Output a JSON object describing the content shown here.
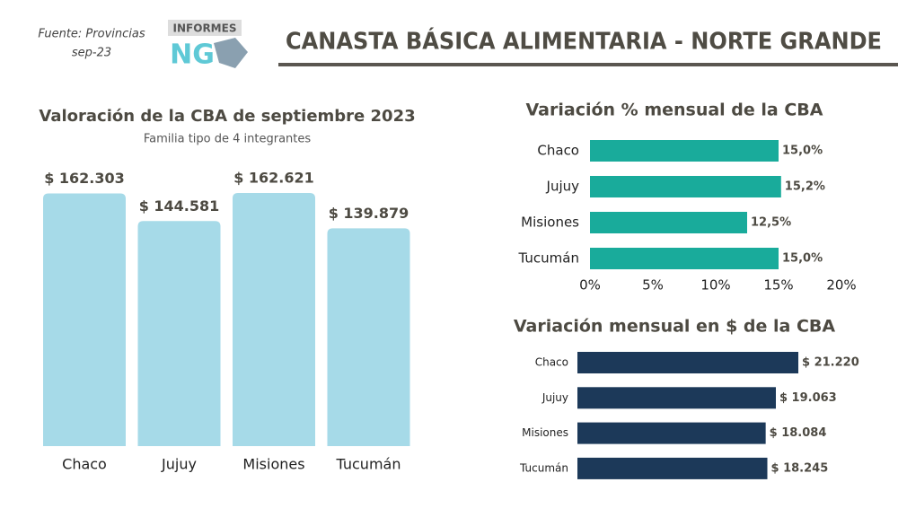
{
  "header": {
    "source": "Fuente: Provincias",
    "date": "sep-23",
    "logo_top": "INFORMES",
    "logo_main": "NG",
    "title": "CANASTA BÁSICA ALIMENTARIA - NORTE GRANDE"
  },
  "chart_data": [
    {
      "type": "bar",
      "title": "Valoración de la CBA de septiembre 2023",
      "subtitle": "Familia tipo de 4 integrantes",
      "categories": [
        "Chaco",
        "Jujuy",
        "Misiones",
        "Tucumán"
      ],
      "values": [
        162303,
        144581,
        162621,
        139879
      ],
      "value_labels": [
        "$ 162.303",
        "$ 144.581",
        "$ 162.621",
        "$ 139.879"
      ],
      "color": "#a6dae8"
    },
    {
      "type": "barh",
      "title": "Variación % mensual de la CBA",
      "categories": [
        "Chaco",
        "Jujuy",
        "Misiones",
        "Tucumán"
      ],
      "values": [
        15.0,
        15.2,
        12.5,
        15.0
      ],
      "value_labels": [
        "15,0%",
        "15,2%",
        "12,5%",
        "15,0%"
      ],
      "xlim": [
        0,
        20
      ],
      "xticks": [
        {
          "value": 0,
          "label": "0%"
        },
        {
          "value": 5,
          "label": "5%"
        },
        {
          "value": 10,
          "label": "10%"
        },
        {
          "value": 15,
          "label": "15%"
        },
        {
          "value": 20,
          "label": "20%"
        }
      ],
      "color": "#19ab9b"
    },
    {
      "type": "barh",
      "title": "Variación mensual en $ de la CBA",
      "categories": [
        "Chaco",
        "Jujuy",
        "Misiones",
        "Tucumán"
      ],
      "values": [
        21220,
        19063,
        18084,
        18245
      ],
      "value_labels": [
        "$ 21.220",
        "$ 19.063",
        "$ 18.084",
        "$ 18.245"
      ],
      "color": "#1c3959"
    }
  ]
}
